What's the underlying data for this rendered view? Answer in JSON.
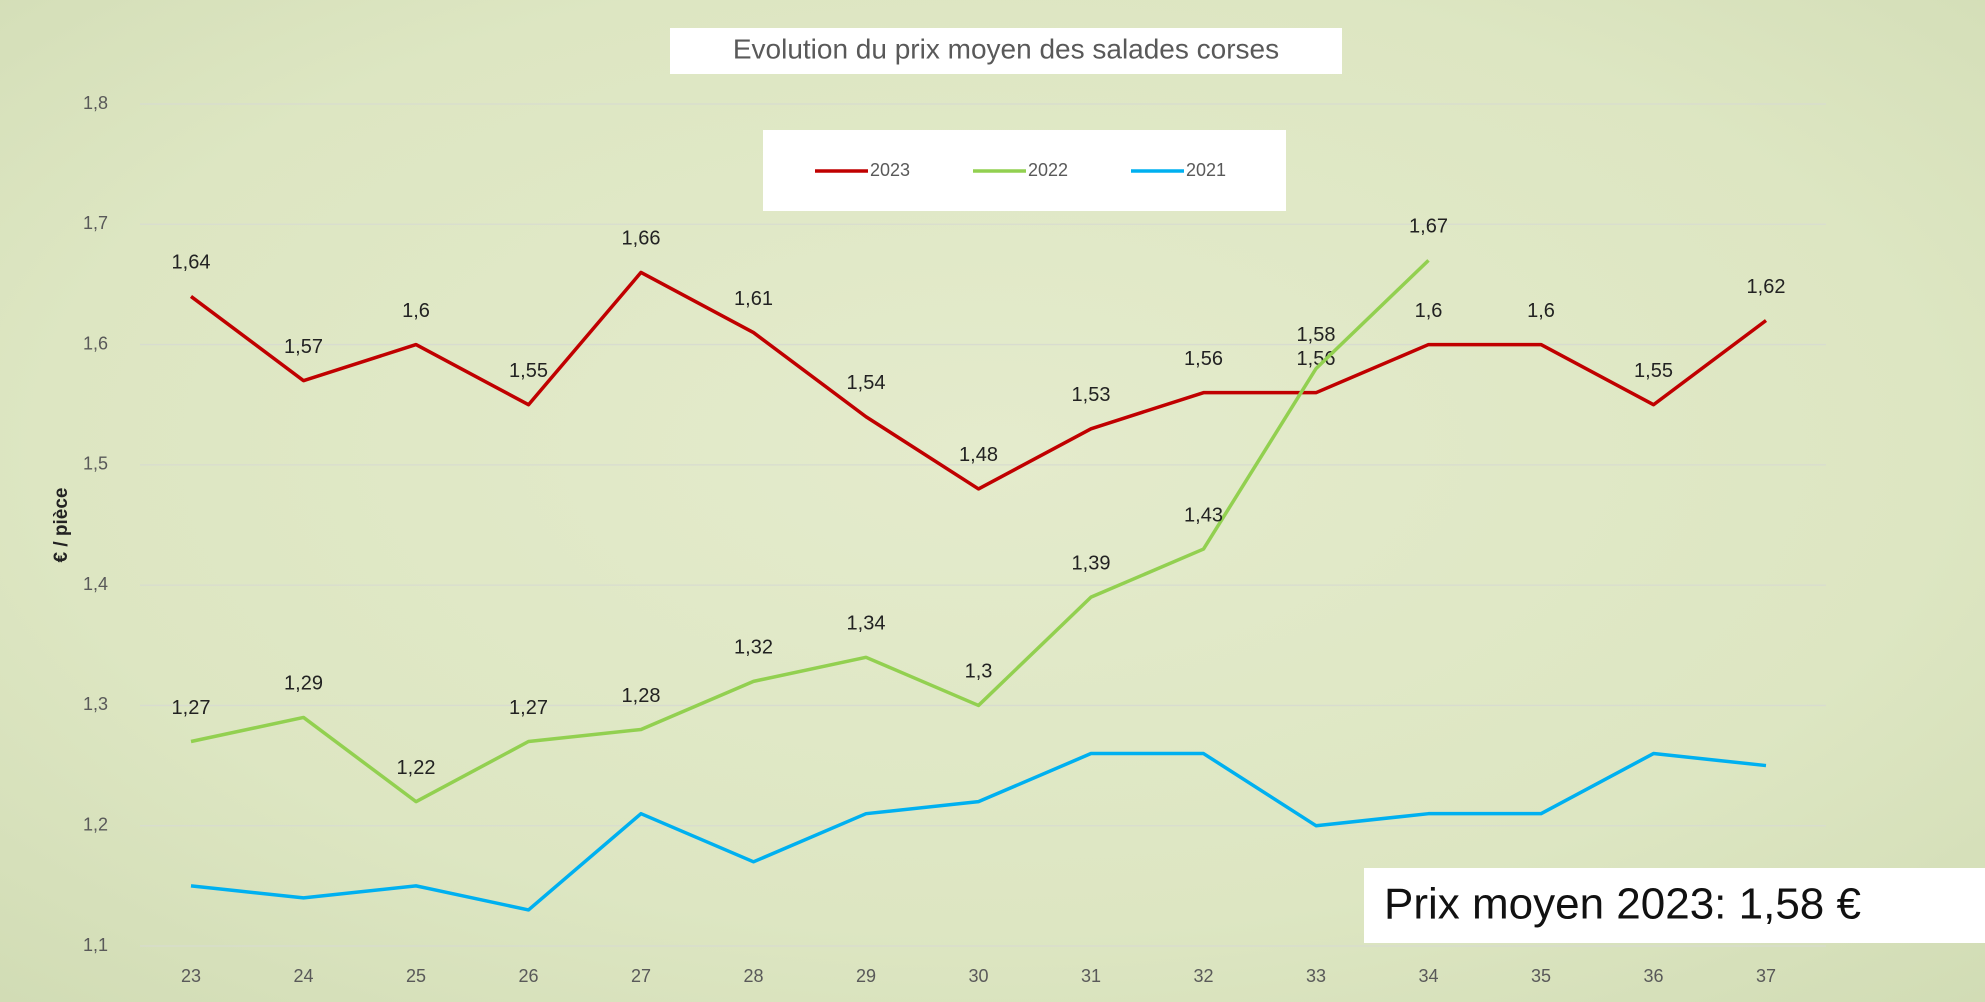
{
  "chart_data": {
    "type": "line",
    "title": "Evolution du prix moyen des salades corses",
    "y_label": "€ / pièce",
    "annotation": "Prix moyen 2023: 1,58 €",
    "categories": [
      "23",
      "24",
      "25",
      "26",
      "27",
      "28",
      "29",
      "30",
      "31",
      "32",
      "33",
      "34",
      "35",
      "36",
      "37"
    ],
    "ylim": [
      1.1,
      1.8
    ],
    "yticks": [
      {
        "value": 1.1,
        "label": "1,1"
      },
      {
        "value": 1.2,
        "label": "1,2"
      },
      {
        "value": 1.3,
        "label": "1,3"
      },
      {
        "value": 1.4,
        "label": "1,4"
      },
      {
        "value": 1.5,
        "label": "1,5"
      },
      {
        "value": 1.6,
        "label": "1,6"
      },
      {
        "value": 1.7,
        "label": "1,7"
      },
      {
        "value": 1.8,
        "label": "1,8"
      }
    ],
    "grid": true,
    "legend": "top",
    "series": [
      {
        "name": "2023",
        "color": "#c00000",
        "values": [
          1.64,
          1.57,
          1.6,
          1.55,
          1.66,
          1.61,
          1.54,
          1.48,
          1.53,
          1.56,
          1.56,
          1.6,
          1.6,
          1.55,
          1.62
        ],
        "value_labels": [
          "1,64",
          "1,57",
          "1,6",
          "1,55",
          "1,66",
          "1,61",
          "1,54",
          "1,48",
          "1,53",
          "1,56",
          "1,56",
          "1,6",
          "1,6",
          "1,55",
          "1,62"
        ]
      },
      {
        "name": "2022",
        "color": "#92d050",
        "values": [
          1.27,
          1.29,
          1.22,
          1.27,
          1.28,
          1.32,
          1.34,
          1.3,
          1.39,
          1.43,
          1.58,
          1.67,
          null,
          null,
          null
        ],
        "value_labels": [
          "1,27",
          "1,29",
          "1,22",
          "1,27",
          "1,28",
          "1,32",
          "1,34",
          "1,3",
          "1,39",
          "1,43",
          "1,58",
          "1,67",
          null,
          null,
          null
        ]
      },
      {
        "name": "2021",
        "color": "#00b0f0",
        "values": [
          1.15,
          1.14,
          1.15,
          1.13,
          1.21,
          1.17,
          1.21,
          1.22,
          1.26,
          1.26,
          1.2,
          1.21,
          1.21,
          1.26,
          1.25
        ]
      }
    ]
  }
}
